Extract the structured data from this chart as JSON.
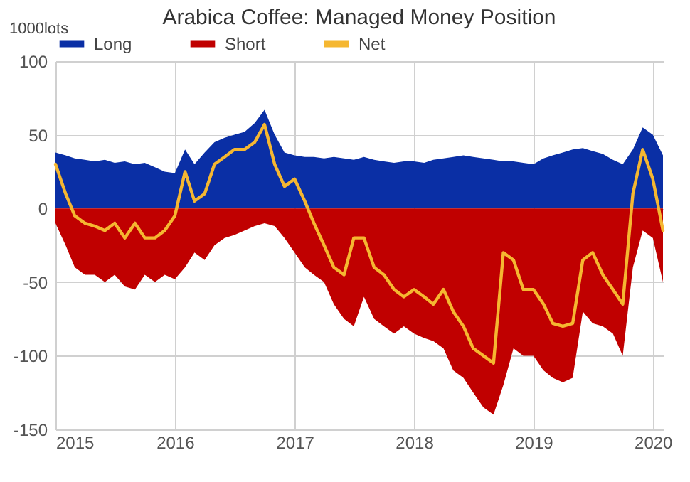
{
  "chart_data": {
    "type": "area",
    "title": "Arabica Coffee: Managed Money Position",
    "ylabel": "1000lots",
    "x": [
      "2015-01",
      "2015-02",
      "2015-03",
      "2015-04",
      "2015-05",
      "2015-06",
      "2015-07",
      "2015-08",
      "2015-09",
      "2015-10",
      "2015-11",
      "2015-12",
      "2016-01",
      "2016-02",
      "2016-03",
      "2016-04",
      "2016-05",
      "2016-06",
      "2016-07",
      "2016-08",
      "2016-09",
      "2016-10",
      "2016-11",
      "2016-12",
      "2017-01",
      "2017-02",
      "2017-03",
      "2017-04",
      "2017-05",
      "2017-06",
      "2017-07",
      "2017-08",
      "2017-09",
      "2017-10",
      "2017-11",
      "2017-12",
      "2018-01",
      "2018-02",
      "2018-03",
      "2018-04",
      "2018-05",
      "2018-06",
      "2018-07",
      "2018-08",
      "2018-09",
      "2018-10",
      "2018-11",
      "2018-12",
      "2019-01",
      "2019-02",
      "2019-03",
      "2019-04",
      "2019-05",
      "2019-06",
      "2019-07",
      "2019-08",
      "2019-09",
      "2019-10",
      "2019-11",
      "2019-12",
      "2020-01",
      "2020-02"
    ],
    "series": [
      {
        "name": "Long",
        "color": "#0a2fa5",
        "values": [
          38,
          36,
          34,
          33,
          32,
          33,
          31,
          32,
          30,
          31,
          28,
          25,
          24,
          40,
          30,
          38,
          45,
          48,
          50,
          52,
          58,
          67,
          50,
          38,
          36,
          35,
          35,
          34,
          35,
          34,
          33,
          35,
          33,
          32,
          31,
          32,
          32,
          31,
          33,
          34,
          35,
          36,
          35,
          34,
          33,
          32,
          32,
          31,
          30,
          34,
          36,
          38,
          40,
          41,
          39,
          37,
          33,
          30,
          40,
          55,
          50,
          36
        ]
      },
      {
        "name": "Short",
        "color": "#c00000",
        "values": [
          -10,
          -25,
          -40,
          -45,
          -45,
          -50,
          -45,
          -53,
          -55,
          -45,
          -50,
          -45,
          -48,
          -40,
          -30,
          -35,
          -25,
          -20,
          -18,
          -15,
          -12,
          -10,
          -12,
          -20,
          -30,
          -40,
          -45,
          -50,
          -65,
          -75,
          -80,
          -60,
          -75,
          -80,
          -85,
          -80,
          -85,
          -88,
          -90,
          -95,
          -110,
          -115,
          -125,
          -135,
          -140,
          -120,
          -95,
          -100,
          -100,
          -110,
          -115,
          -118,
          -115,
          -70,
          -78,
          -80,
          -85,
          -100,
          -40,
          -15,
          -20,
          -50
        ]
      },
      {
        "name": "Net",
        "type": "line",
        "color": "#f5b731",
        "values": [
          30,
          10,
          -5,
          -10,
          -12,
          -15,
          -10,
          -20,
          -10,
          -20,
          -20,
          -15,
          -5,
          25,
          5,
          10,
          30,
          35,
          40,
          40,
          45,
          57,
          30,
          15,
          20,
          5,
          -10,
          -25,
          -40,
          -45,
          -20,
          -20,
          -40,
          -45,
          -55,
          -60,
          -55,
          -60,
          -65,
          -55,
          -70,
          -80,
          -95,
          -100,
          -105,
          -30,
          -35,
          -55,
          -55,
          -65,
          -78,
          -80,
          -78,
          -35,
          -30,
          -45,
          -55,
          -65,
          10,
          40,
          20,
          -15
        ]
      }
    ],
    "xlim": [
      "2015-01",
      "2020-02"
    ],
    "xticks": [
      "2015",
      "2016",
      "2017",
      "2018",
      "2019",
      "2020"
    ],
    "ylim": [
      -150,
      100
    ],
    "yticks": [
      -150,
      -100,
      -50,
      0,
      50,
      100
    ],
    "grid": true,
    "legend": "top"
  }
}
